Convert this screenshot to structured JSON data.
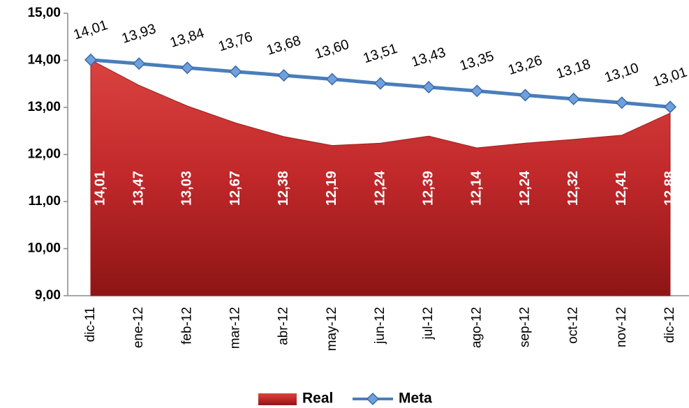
{
  "chart_data": {
    "type": "area-line",
    "categories": [
      "dic-11",
      "ene-12",
      "feb-12",
      "mar-12",
      "abr-12",
      "may-12",
      "jun-12",
      "jul-12",
      "ago-12",
      "sep-12",
      "oct-12",
      "nov-12",
      "dic-12"
    ],
    "series": [
      {
        "name": "Real",
        "type": "area",
        "color": "#c0282a",
        "values": [
          14.01,
          13.47,
          13.03,
          12.67,
          12.38,
          12.19,
          12.24,
          12.39,
          12.14,
          12.24,
          12.32,
          12.41,
          12.88
        ],
        "value_labels": [
          "14,01",
          "13,47",
          "13,03",
          "12,67",
          "12,38",
          "12,19",
          "12,24",
          "12,39",
          "12,14",
          "12,24",
          "12,32",
          "12,41",
          "12,88"
        ]
      },
      {
        "name": "Meta",
        "type": "line",
        "color": "#4a7ebb",
        "values": [
          14.01,
          13.93,
          13.84,
          13.76,
          13.68,
          13.6,
          13.51,
          13.43,
          13.35,
          13.26,
          13.18,
          13.1,
          13.01
        ],
        "value_labels": [
          "14,01",
          "13,93",
          "13,84",
          "13,76",
          "13,68",
          "13,60",
          "13,51",
          "13,43",
          "13,35",
          "13,26",
          "13,18",
          "13,10",
          "13,01"
        ]
      }
    ],
    "ylim": [
      9,
      15
    ],
    "yticks": [
      {
        "value": 9,
        "label": "9,00"
      },
      {
        "value": 10,
        "label": "10,00"
      },
      {
        "value": 11,
        "label": "11,00"
      },
      {
        "value": 12,
        "label": "12,00"
      },
      {
        "value": 13,
        "label": "13,00"
      },
      {
        "value": 14,
        "label": "14,00"
      },
      {
        "value": 15,
        "label": "15,00"
      }
    ],
    "grid": false,
    "legend": "bottom"
  }
}
